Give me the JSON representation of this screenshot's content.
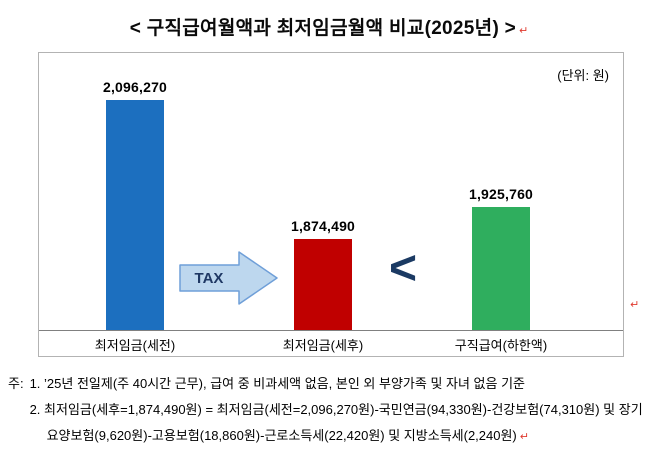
{
  "title": "< 구직급여월액과 최저임금월액 비교(2025년) >",
  "unit_label": "(단위: 원)",
  "marks": {
    "return": "↵"
  },
  "chart_data": {
    "type": "bar",
    "title": "구직급여월액과 최저임금월액 비교(2025년)",
    "unit": "원",
    "categories": [
      "최저임금(세전)",
      "최저임금(세후)",
      "구직급여(하한액)"
    ],
    "values": [
      2096270,
      1874490,
      1925760
    ],
    "value_labels": [
      "2,096,270",
      "1,874,490",
      "1,925,760"
    ],
    "colors": [
      "#1c6fbf",
      "#c00000",
      "#2fae5e"
    ],
    "ylim": [
      1730000,
      2100000
    ],
    "grid": false,
    "legend": "none",
    "annotations": [
      {
        "text": "TAX",
        "between": [
          "최저임금(세전)",
          "최저임금(세후)"
        ]
      },
      {
        "text": "<",
        "between": [
          "최저임금(세후)",
          "구직급여(하한액)"
        ]
      }
    ]
  },
  "tax_arrow": {
    "label": "TAX",
    "fill": "#bdd7ee",
    "stroke": "#6f9fd8",
    "text_color": "#1f3864"
  },
  "comparison": {
    "symbol": "<",
    "color": "#1b3a63"
  },
  "notes": {
    "prefix": "주:",
    "items": [
      "1. ’25년 전일제(주 40시간 근무), 급여 중 비과세액 없음, 본인 외 부양가족 및 자녀 없음 기준",
      "2. 최저임금(세후=1,874,490원) = 최저임금(세전=2,096,270원)-국민연금(94,330원)-건강보험(74,310원) 및 장기요양보험(9,620원)-고용보험(18,860원)-근로소득세(22,420원) 및 지방소득세(2,240원)"
    ]
  }
}
